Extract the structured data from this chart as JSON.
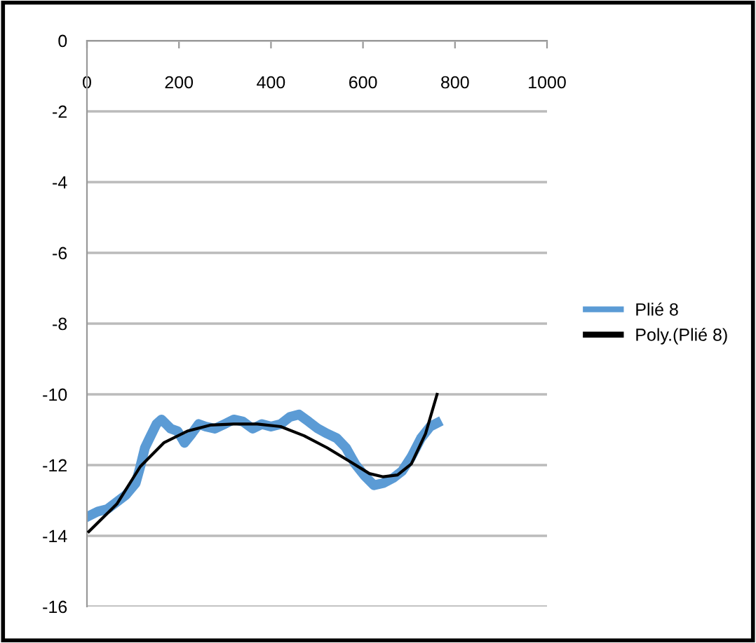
{
  "chart_data": {
    "type": "line",
    "xlim": [
      0,
      1000
    ],
    "xticks": [
      0,
      200,
      400,
      600,
      800,
      1000
    ],
    "ylim": [
      -16,
      0
    ],
    "yticks": [
      -16,
      -14,
      -12,
      -10,
      -8,
      -6,
      -4,
      -2,
      0
    ],
    "grid": "y",
    "legend": "right",
    "marker": "none",
    "series": [
      {
        "name": "Plié 8",
        "color": "#5b9bd5",
        "x": [
          4,
          24,
          45,
          65,
          85,
          106,
          116,
          126,
          136,
          151,
          162,
          172,
          182,
          197,
          212,
          228,
          243,
          258,
          278,
          299,
          319,
          339,
          360,
          380,
          400,
          421,
          441,
          461,
          482,
          502,
          522,
          543,
          563,
          583,
          604,
          624,
          644,
          665,
          685,
          705,
          726,
          746,
          761
        ],
        "values": [
          -13.44,
          -13.31,
          -13.24,
          -13.04,
          -12.84,
          -12.51,
          -12.04,
          -11.51,
          -11.24,
          -10.84,
          -10.71,
          -10.84,
          -10.97,
          -11.04,
          -11.37,
          -11.11,
          -10.84,
          -10.91,
          -10.97,
          -10.84,
          -10.71,
          -10.77,
          -10.97,
          -10.84,
          -10.91,
          -10.84,
          -10.64,
          -10.57,
          -10.77,
          -10.97,
          -11.11,
          -11.24,
          -11.51,
          -11.97,
          -12.31,
          -12.57,
          -12.51,
          -12.37,
          -12.17,
          -11.77,
          -11.24,
          -10.91,
          -10.81
        ]
      },
      {
        "name": "Poly.(Plié 8)",
        "color": "#000000",
        "x": [
          4,
          65,
          116,
          167,
          218,
          268,
          319,
          370,
          421,
          472,
          522,
          573,
          614,
          644,
          675,
          705,
          736,
          761
        ],
        "values": [
          -13.88,
          -13.1,
          -12.04,
          -11.37,
          -11.04,
          -10.87,
          -10.84,
          -10.84,
          -10.91,
          -11.17,
          -11.51,
          -11.91,
          -12.24,
          -12.33,
          -12.28,
          -11.97,
          -11.11,
          -10.0
        ]
      }
    ]
  }
}
